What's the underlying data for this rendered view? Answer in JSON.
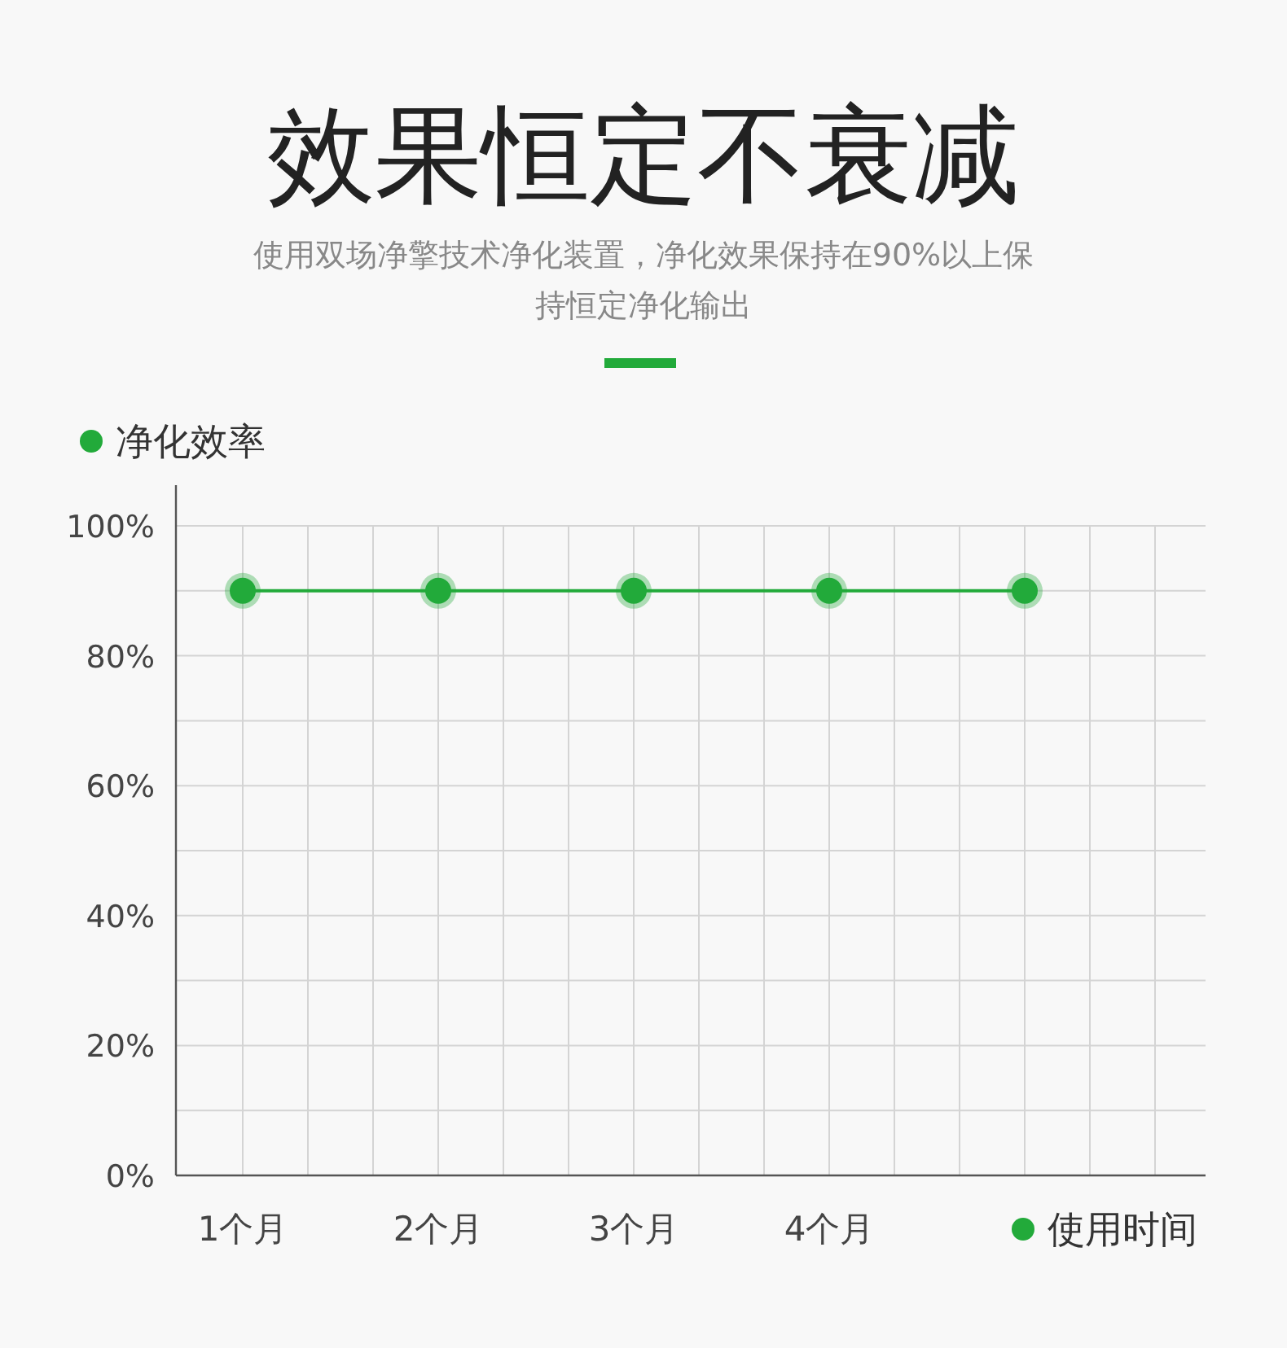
{
  "chart_data": {
    "type": "line",
    "title": "效果恒定不衰减",
    "subtitle": "使用双场净擎技术净化装置，净化效果保持在90%以上保持恒定净化输出",
    "categories": [
      "1个月",
      "2个月",
      "3个月",
      "4个月",
      null
    ],
    "series": [
      {
        "name": "净化效率",
        "color": "#22aa3a",
        "values": [
          90,
          90,
          90,
          90,
          90
        ]
      }
    ],
    "xlabel": "使用时间",
    "ylim": [
      0,
      100
    ],
    "yticks": [
      {
        "value": 0,
        "label": "0%"
      },
      {
        "value": 10,
        "label": null
      },
      {
        "value": 20,
        "label": "20%"
      },
      {
        "value": 30,
        "label": null
      },
      {
        "value": 40,
        "label": "40%"
      },
      {
        "value": 50,
        "label": null
      },
      {
        "value": 60,
        "label": "60%"
      },
      {
        "value": 70,
        "label": null
      },
      {
        "value": 80,
        "label": "80%"
      },
      {
        "value": 90,
        "label": null
      },
      {
        "value": 100,
        "label": "100%"
      }
    ],
    "grid": true,
    "legend": "top left",
    "marker": "circle",
    "line_style": "solid"
  }
}
